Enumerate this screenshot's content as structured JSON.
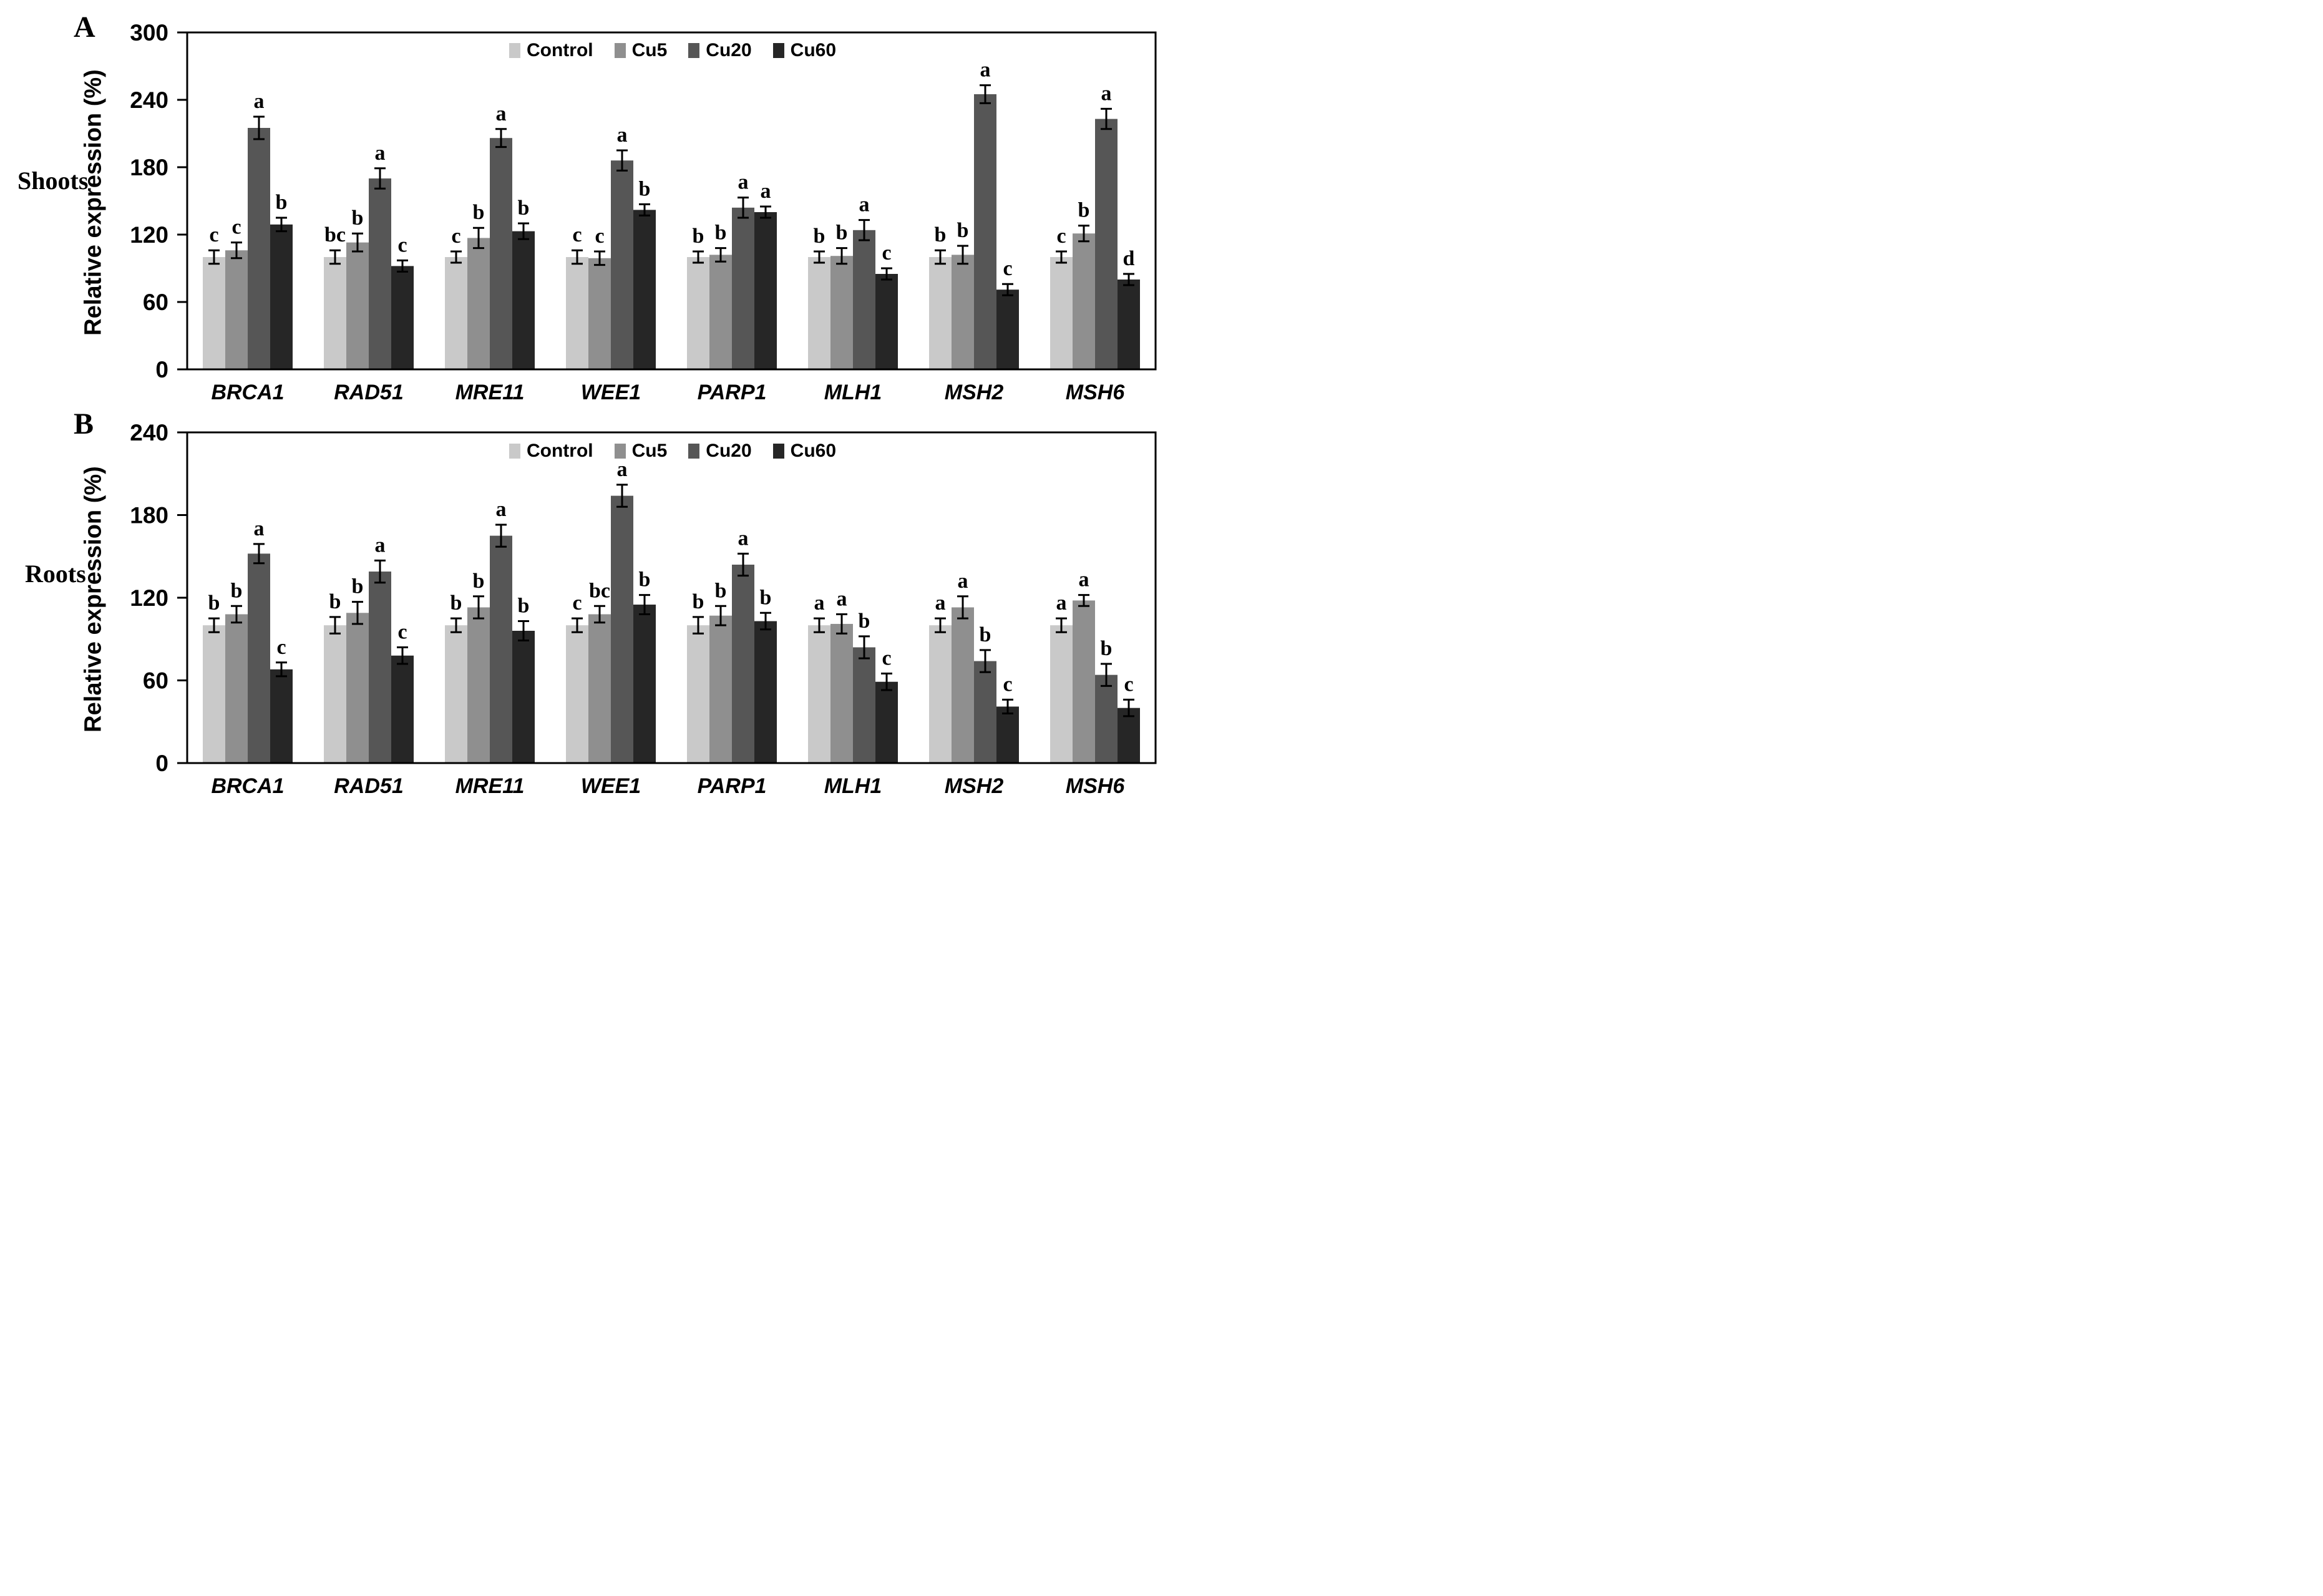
{
  "figure": {
    "panels": [
      {
        "panel_label": "A",
        "side_label": "Shoots"
      },
      {
        "panel_label": "B",
        "side_label": "Roots"
      }
    ]
  },
  "chart_data": [
    {
      "type": "bar",
      "panel": "A",
      "tissue": "Shoots",
      "ylabel": "Relative expression (%)",
      "ylim": [
        0,
        300
      ],
      "yticks": [
        0,
        60,
        120,
        180,
        240,
        300
      ],
      "grid": false,
      "legend_position": "top-center-inside",
      "categories": [
        "BRCA1",
        "RAD51",
        "MRE11",
        "WEE1",
        "PARP1",
        "MLH1",
        "MSH2",
        "MSH6"
      ],
      "series": [
        {
          "name": "Control",
          "color": "#c9c9c9",
          "values": [
            100,
            100,
            100,
            100,
            100,
            100,
            100,
            100
          ],
          "errors": [
            6,
            6,
            5,
            6,
            5,
            5,
            6,
            5
          ],
          "letters": [
            "c",
            "bc",
            "c",
            "c",
            "b",
            "b",
            "b",
            "c"
          ]
        },
        {
          "name": "Cu5",
          "color": "#8f8f8f",
          "values": [
            106,
            113,
            117,
            99,
            102,
            101,
            102,
            121
          ],
          "errors": [
            7,
            8,
            9,
            6,
            6,
            7,
            8,
            7
          ],
          "letters": [
            "c",
            "b",
            "b",
            "c",
            "b",
            "b",
            "b",
            "b"
          ]
        },
        {
          "name": "Cu20",
          "color": "#565656",
          "values": [
            215,
            170,
            206,
            186,
            144,
            124,
            245,
            223
          ],
          "errors": [
            10,
            9,
            8,
            9,
            9,
            9,
            8,
            9
          ],
          "letters": [
            "a",
            "a",
            "a",
            "a",
            "a",
            "a",
            "a",
            "a"
          ]
        },
        {
          "name": "Cu60",
          "color": "#262626",
          "values": [
            129,
            92,
            123,
            142,
            140,
            85,
            71,
            80
          ],
          "errors": [
            6,
            5,
            7,
            5,
            5,
            5,
            5,
            5
          ],
          "letters": [
            "b",
            "c",
            "b",
            "b",
            "a",
            "c",
            "c",
            "d"
          ]
        }
      ]
    },
    {
      "type": "bar",
      "panel": "B",
      "tissue": "Roots",
      "ylabel": "Relative expression (%)",
      "ylim": [
        0,
        240
      ],
      "yticks": [
        0,
        60,
        120,
        180,
        240
      ],
      "grid": false,
      "legend_position": "top-center-inside",
      "categories": [
        "BRCA1",
        "RAD51",
        "MRE11",
        "WEE1",
        "PARP1",
        "MLH1",
        "MSH2",
        "MSH6"
      ],
      "series": [
        {
          "name": "Control",
          "color": "#c9c9c9",
          "values": [
            100,
            100,
            100,
            100,
            100,
            100,
            100,
            100
          ],
          "errors": [
            5,
            6,
            5,
            5,
            6,
            5,
            5,
            5
          ],
          "letters": [
            "b",
            "b",
            "b",
            "c",
            "b",
            "a",
            "a",
            "a"
          ]
        },
        {
          "name": "Cu5",
          "color": "#8f8f8f",
          "values": [
            108,
            109,
            113,
            108,
            107,
            101,
            113,
            118
          ],
          "errors": [
            6,
            8,
            8,
            6,
            7,
            7,
            8,
            4
          ],
          "letters": [
            "b",
            "b",
            "b",
            "bc",
            "b",
            "a",
            "a",
            "a"
          ]
        },
        {
          "name": "Cu20",
          "color": "#565656",
          "values": [
            152,
            139,
            165,
            194,
            144,
            84,
            74,
            64
          ],
          "errors": [
            7,
            8,
            8,
            8,
            8,
            8,
            8,
            8
          ],
          "letters": [
            "a",
            "a",
            "a",
            "a",
            "a",
            "b",
            "b",
            "b"
          ]
        },
        {
          "name": "Cu60",
          "color": "#262626",
          "values": [
            68,
            78,
            96,
            115,
            103,
            59,
            41,
            40
          ],
          "errors": [
            5,
            6,
            7,
            7,
            6,
            6,
            5,
            6
          ],
          "letters": [
            "c",
            "c",
            "b",
            "b",
            "b",
            "c",
            "c",
            "c"
          ]
        }
      ]
    }
  ]
}
